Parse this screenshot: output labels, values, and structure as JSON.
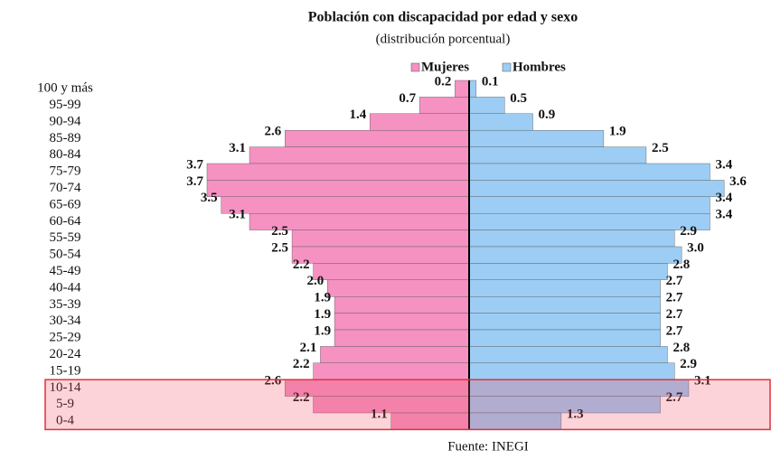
{
  "chart_data": {
    "type": "pyramid",
    "title": "Población con discapacidad por edad y sexo",
    "subtitle": "(distribución porcentual)",
    "source": "Fuente: INEGI",
    "categories": [
      "100 y más",
      "95-99",
      "90-94",
      "85-89",
      "80-84",
      "75-79",
      "70-74",
      "65-69",
      "60-64",
      "55-59",
      "50-54",
      "45-49",
      "40-44",
      "35-39",
      "30-34",
      "25-29",
      "20-24",
      "15-19",
      "10-14",
      "5-9",
      "0-4"
    ],
    "series": [
      {
        "name": "Mujeres",
        "color": "#f592c2",
        "values": [
          0.2,
          0.7,
          1.4,
          2.6,
          3.1,
          3.7,
          3.7,
          3.5,
          3.1,
          2.5,
          2.5,
          2.2,
          2.0,
          1.9,
          1.9,
          1.9,
          2.1,
          2.2,
          2.6,
          2.2,
          1.1
        ],
        "value_labels": [
          "0.2",
          "0.7",
          "1.4",
          "2.6",
          "3.1",
          "3.7",
          "3.7",
          "3.5",
          "3.1",
          "2.5",
          "2.5",
          "2.2",
          "2.0",
          "1.9",
          "1.9",
          "1.9",
          "2.1",
          "2.2",
          "2.6",
          "2.2",
          "1.1"
        ]
      },
      {
        "name": "Hombres",
        "color": "#9dcdf4",
        "values": [
          0.1,
          0.5,
          0.9,
          1.9,
          2.5,
          3.4,
          3.6,
          3.4,
          3.4,
          2.9,
          3.0,
          2.8,
          2.7,
          2.7,
          2.7,
          2.7,
          2.8,
          2.9,
          3.1,
          2.7,
          1.3
        ],
        "value_labels": [
          "0.1",
          "0.5",
          "0.9",
          "1.9",
          "2.5",
          "3.4",
          "3.6",
          "3.4",
          "3.4",
          "2.9",
          "3.0",
          "2.8",
          "2.7",
          "2.7",
          "2.7",
          "2.7",
          "2.8",
          "2.9",
          "3.1",
          "2.7",
          "1.3"
        ]
      }
    ],
    "legend": "top"
  }
}
